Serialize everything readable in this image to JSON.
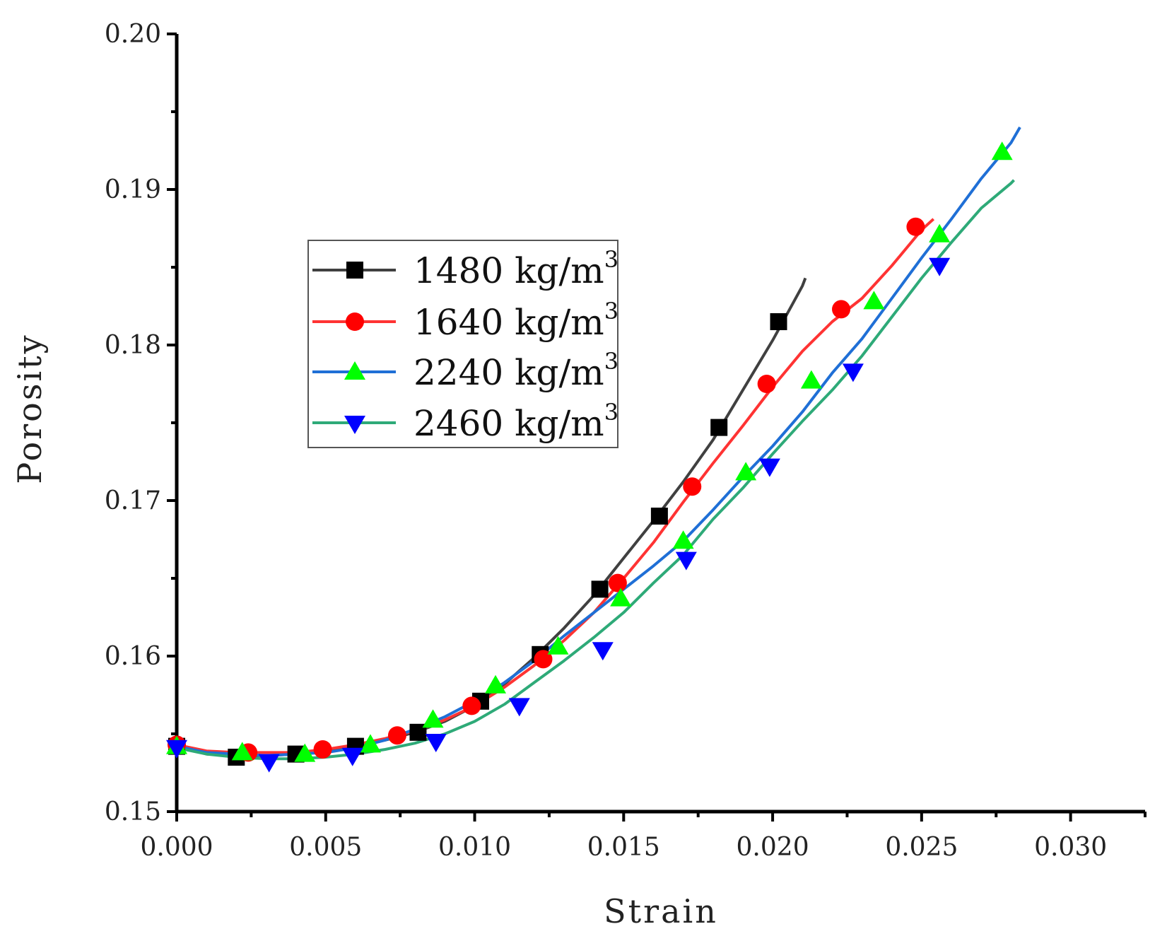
{
  "chart_data": {
    "type": "line",
    "title": "",
    "xlabel": "Strain",
    "ylabel": "Porosity",
    "xlim": [
      0,
      0.0325
    ],
    "ylim": [
      0.15,
      0.2
    ],
    "x_ticks": [
      0.0,
      0.005,
      0.01,
      0.015,
      0.02,
      0.025,
      0.03
    ],
    "x_tick_labels": [
      "0.000",
      "0.005",
      "0.010",
      "0.015",
      "0.020",
      "0.025",
      "0.030"
    ],
    "y_ticks": [
      0.15,
      0.16,
      0.17,
      0.18,
      0.19,
      0.2
    ],
    "y_tick_labels": [
      "0.15",
      "0.16",
      "0.17",
      "0.18",
      "0.19",
      "0.20"
    ],
    "grid": false,
    "legend_position": "upper-left",
    "series": [
      {
        "name": "1480 kg/m3",
        "legend_base": "1480 kg/m",
        "legend_sup": "3",
        "color": "#404040",
        "marker": "square",
        "line_x": [
          0.0,
          0.001,
          0.002,
          0.003,
          0.004,
          0.005,
          0.006,
          0.007,
          0.008,
          0.009,
          0.01,
          0.011,
          0.012,
          0.013,
          0.014,
          0.015,
          0.016,
          0.017,
          0.018,
          0.019,
          0.02,
          0.021,
          0.0211
        ],
        "line_y": [
          0.1542,
          0.1537,
          0.1536,
          0.1536,
          0.1537,
          0.1539,
          0.1542,
          0.1546,
          0.1551,
          0.1558,
          0.1568,
          0.1582,
          0.1599,
          0.1618,
          0.1639,
          0.1663,
          0.1687,
          0.1712,
          0.1739,
          0.1771,
          0.1803,
          0.1838,
          0.1843
        ],
        "marker_x": [
          0.0,
          0.002,
          0.004,
          0.006,
          0.0081,
          0.0102,
          0.0122,
          0.0142,
          0.0162,
          0.0182,
          0.0202
        ],
        "marker_y": [
          0.1542,
          0.1535,
          0.1537,
          0.1542,
          0.1551,
          0.1571,
          0.1601,
          0.1643,
          0.169,
          0.1747,
          0.1815
        ]
      },
      {
        "name": "1640 kg/m3",
        "legend_base": "1640 kg/m",
        "legend_sup": "3",
        "color": "#ff3333",
        "marker": "circle",
        "line_x": [
          0.0,
          0.001,
          0.002,
          0.003,
          0.004,
          0.005,
          0.006,
          0.007,
          0.008,
          0.009,
          0.01,
          0.011,
          0.012,
          0.013,
          0.014,
          0.015,
          0.016,
          0.017,
          0.018,
          0.019,
          0.02,
          0.021,
          0.022,
          0.023,
          0.024,
          0.025,
          0.0254
        ],
        "line_y": [
          0.1543,
          0.1539,
          0.1538,
          0.1538,
          0.1538,
          0.154,
          0.1543,
          0.1547,
          0.1552,
          0.1559,
          0.1568,
          0.158,
          0.1594,
          0.161,
          0.1628,
          0.165,
          0.1673,
          0.1699,
          0.1724,
          0.1748,
          0.1773,
          0.1796,
          0.1815,
          0.183,
          0.1851,
          0.1874,
          0.1881
        ],
        "marker_x": [
          0.0,
          0.0024,
          0.0049,
          0.0074,
          0.0099,
          0.0123,
          0.0148,
          0.0173,
          0.0198,
          0.0223,
          0.0248
        ],
        "marker_y": [
          0.1543,
          0.1538,
          0.154,
          0.1549,
          0.1568,
          0.1598,
          0.1647,
          0.1709,
          0.1775,
          0.1823,
          0.1876
        ]
      },
      {
        "name": "2240 kg/m3",
        "legend_base": "2240 kg/m",
        "legend_sup": "3",
        "color": "#1f6fd6",
        "marker": "triangle-up",
        "line_x": [
          0.0,
          0.001,
          0.002,
          0.003,
          0.004,
          0.005,
          0.006,
          0.007,
          0.008,
          0.009,
          0.01,
          0.011,
          0.012,
          0.013,
          0.014,
          0.015,
          0.016,
          0.017,
          0.018,
          0.019,
          0.02,
          0.021,
          0.022,
          0.023,
          0.024,
          0.025,
          0.026,
          0.027,
          0.028,
          0.0283
        ],
        "line_y": [
          0.1542,
          0.1538,
          0.1537,
          0.1536,
          0.1537,
          0.1538,
          0.1541,
          0.1546,
          0.1553,
          0.1561,
          0.1571,
          0.1583,
          0.1597,
          0.1613,
          0.1628,
          0.1643,
          0.1658,
          0.1674,
          0.1694,
          0.1715,
          0.1735,
          0.1757,
          0.1782,
          0.1804,
          0.183,
          0.1856,
          0.1881,
          0.1907,
          0.193,
          0.194
        ],
        "marker_x": [
          0.0,
          0.0022,
          0.0043,
          0.0065,
          0.0086,
          0.0107,
          0.0128,
          0.0149,
          0.017,
          0.0191,
          0.0213,
          0.0234,
          0.0256,
          0.0277
        ],
        "marker_y": [
          0.1542,
          0.1538,
          0.1537,
          0.1543,
          0.1559,
          0.1581,
          0.1606,
          0.1637,
          0.1674,
          0.1718,
          0.1777,
          0.1828,
          0.1871,
          0.1924
        ]
      },
      {
        "name": "2460 kg/m3",
        "legend_base": "2460 kg/m",
        "legend_sup": "3",
        "color": "#2eaa78",
        "marker": "triangle-down",
        "line_x": [
          0.0,
          0.001,
          0.002,
          0.003,
          0.004,
          0.005,
          0.006,
          0.007,
          0.008,
          0.009,
          0.01,
          0.011,
          0.012,
          0.013,
          0.014,
          0.015,
          0.016,
          0.017,
          0.018,
          0.019,
          0.02,
          0.021,
          0.022,
          0.023,
          0.024,
          0.025,
          0.026,
          0.027,
          0.028,
          0.0281
        ],
        "line_y": [
          0.1541,
          0.1537,
          0.1535,
          0.1534,
          0.1534,
          0.1535,
          0.1537,
          0.154,
          0.1544,
          0.155,
          0.1558,
          0.1569,
          0.1583,
          0.1597,
          0.1612,
          0.1628,
          0.1647,
          0.1665,
          0.1688,
          0.1708,
          0.173,
          0.1751,
          0.1771,
          0.1793,
          0.1818,
          0.1843,
          0.1866,
          0.1888,
          0.1904,
          0.1906
        ],
        "marker_x": [
          0.0,
          0.0031,
          0.0059,
          0.0087,
          0.0115,
          0.0143,
          0.0171,
          0.0199,
          0.0227,
          0.0256
        ],
        "marker_y": [
          0.1541,
          0.1532,
          0.1536,
          0.1545,
          0.1568,
          0.1604,
          0.1662,
          0.1722,
          0.1783,
          0.1851
        ]
      }
    ]
  }
}
